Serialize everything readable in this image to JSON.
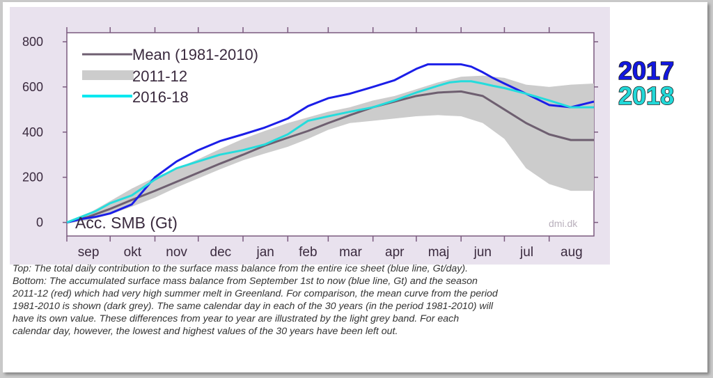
{
  "chart_data": {
    "type": "line",
    "ylabel": "Acc. SMB (Gt)",
    "credit": "dmi.dk",
    "ylim": [
      -60,
      840
    ],
    "yticks": [
      0,
      200,
      400,
      600,
      800
    ],
    "xlim": [
      0,
      365
    ],
    "months": [
      {
        "label": "sep",
        "start": 0
      },
      {
        "label": "okt",
        "start": 30
      },
      {
        "label": "nov",
        "start": 61
      },
      {
        "label": "dec",
        "start": 91
      },
      {
        "label": "jan",
        "start": 122
      },
      {
        "label": "feb",
        "start": 153
      },
      {
        "label": "mar",
        "start": 181
      },
      {
        "label": "apr",
        "start": 212
      },
      {
        "label": "maj",
        "start": 242
      },
      {
        "label": "jun",
        "start": 273
      },
      {
        "label": "jul",
        "start": 303
      },
      {
        "label": "aug",
        "start": 334
      }
    ],
    "legend": [
      {
        "label": "Mean (1981-2010)",
        "color": "#6e5f70"
      },
      {
        "label": "2011-12",
        "color": "#cccccc"
      },
      {
        "label": "2016-18",
        "color": "#00e8f0"
      }
    ],
    "band": {
      "name": "min-max range (light grey)",
      "color": "#cccccc",
      "x": [
        0,
        15,
        30,
        45,
        61,
        76,
        91,
        106,
        122,
        137,
        153,
        167,
        181,
        196,
        212,
        227,
        242,
        257,
        273,
        288,
        303,
        318,
        334,
        349,
        365
      ],
      "upper": [
        5,
        40,
        95,
        150,
        200,
        240,
        280,
        325,
        370,
        405,
        440,
        465,
        490,
        510,
        540,
        560,
        590,
        620,
        645,
        650,
        640,
        610,
        600,
        610,
        615
      ],
      "lower": [
        -5,
        10,
        35,
        70,
        110,
        155,
        195,
        235,
        275,
        305,
        335,
        370,
        410,
        440,
        450,
        460,
        470,
        475,
        470,
        440,
        370,
        240,
        170,
        140,
        140
      ]
    },
    "series": [
      {
        "name": "Mean (1981-2010)",
        "color": "#6e5f70",
        "x": [
          0,
          15,
          30,
          45,
          61,
          76,
          91,
          106,
          122,
          137,
          153,
          167,
          181,
          196,
          212,
          227,
          242,
          257,
          273,
          288,
          303,
          318,
          334,
          349,
          365
        ],
        "y": [
          0,
          25,
          60,
          100,
          140,
          180,
          220,
          260,
          300,
          340,
          375,
          405,
          440,
          475,
          510,
          535,
          560,
          575,
          580,
          560,
          500,
          440,
          390,
          365,
          365
        ]
      },
      {
        "name": "2017",
        "color": "#1b1ee8",
        "x": [
          0,
          10,
          20,
          30,
          45,
          61,
          76,
          91,
          106,
          122,
          137,
          153,
          167,
          181,
          196,
          212,
          227,
          242,
          250,
          257,
          265,
          273,
          280,
          288,
          295,
          303,
          318,
          334,
          349,
          365
        ],
        "y": [
          0,
          15,
          25,
          40,
          80,
          200,
          270,
          320,
          360,
          390,
          420,
          460,
          515,
          550,
          570,
          600,
          630,
          680,
          700,
          700,
          700,
          700,
          690,
          665,
          640,
          615,
          570,
          520,
          510,
          535
        ]
      },
      {
        "name": "2018",
        "color": "#25dcdc",
        "x": [
          0,
          10,
          20,
          30,
          45,
          61,
          76,
          91,
          106,
          122,
          137,
          153,
          167,
          181,
          196,
          212,
          227,
          242,
          257,
          265,
          273,
          280,
          288,
          295,
          303,
          318,
          334,
          349,
          365
        ],
        "y": [
          0,
          25,
          50,
          85,
          120,
          190,
          240,
          270,
          300,
          320,
          345,
          390,
          450,
          470,
          490,
          510,
          540,
          575,
          605,
          620,
          625,
          625,
          615,
          605,
          595,
          570,
          540,
          510,
          510
        ]
      }
    ]
  },
  "caption": {
    "line1": "Top: The total daily contribution to the surface mass balance from the entire ice sheet (blue line, Gt/day).",
    "line2": "Bottom: The accumulated surface mass balance from September 1st to now (blue line, Gt) and the season",
    "line3": "2011-12 (red) which had very high summer melt in Greenland. For comparison, the mean curve from the period",
    "line4": "1981-2010 is shown (dark grey). The same calendar day in each of the 30 years (in the period 1981-2010) will",
    "line5": "have its own value. These differences from year to year are illustrated by the light grey band. For each",
    "line6": "calendar day, however, the lowest and highest values of the 30 years have been left out."
  },
  "year_labels": [
    {
      "text": "2017",
      "color": "#1218e0"
    },
    {
      "text": "2018",
      "color": "#22d8d8"
    }
  ]
}
